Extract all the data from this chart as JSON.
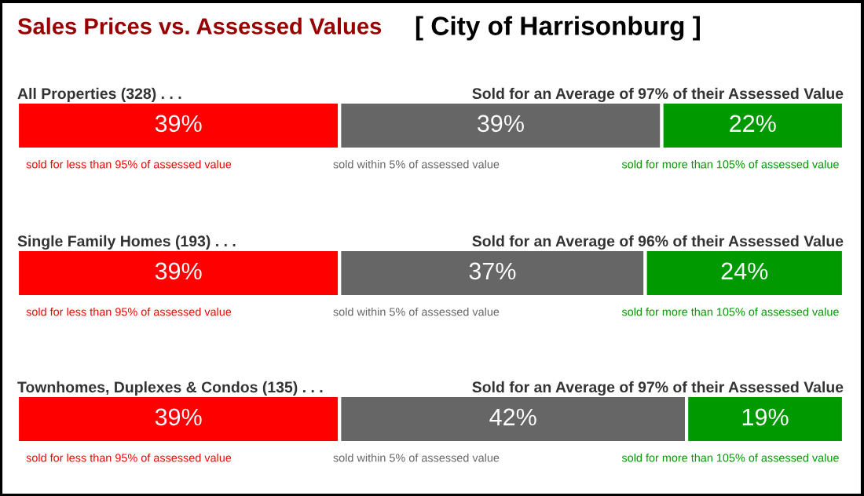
{
  "chart_data": [
    {
      "type": "bar",
      "orientation": "horizontal",
      "stacked": true,
      "title": "All Properties (328) . . .",
      "subtitle": "Sold for an Average of 97% of their Assessed Value",
      "annotations": [
        "Sales Prices vs. Assessed Values",
        "[ City of Harrisonburg ]"
      ],
      "categories": [
        null
      ],
      "xlim": [
        0,
        100
      ],
      "series": [
        {
          "name": "sold for less than 95% of assessed value",
          "color": "#ff0000",
          "values": [
            39
          ],
          "value_labels": [
            "39%"
          ]
        },
        {
          "name": "sold within 5% of assessed value",
          "color": "#666666",
          "values": [
            39
          ],
          "value_labels": [
            "39%"
          ]
        },
        {
          "name": "sold for more than 105% of assessed value",
          "color": "#009900",
          "values": [
            22
          ],
          "value_labels": [
            "22%"
          ]
        }
      ]
    },
    {
      "type": "bar",
      "orientation": "horizontal",
      "stacked": true,
      "title": "Single Family Homes (193) . . .",
      "subtitle": "Sold for an Average of 96% of their Assessed Value",
      "categories": [
        null
      ],
      "xlim": [
        0,
        100
      ],
      "series": [
        {
          "name": "sold for less than 95% of assessed value",
          "color": "#ff0000",
          "values": [
            39
          ],
          "value_labels": [
            "39%"
          ]
        },
        {
          "name": "sold within 5% of assessed value",
          "color": "#666666",
          "values": [
            37
          ],
          "value_labels": [
            "37%"
          ]
        },
        {
          "name": "sold for more than 105% of assessed value",
          "color": "#009900",
          "values": [
            24
          ],
          "value_labels": [
            "24%"
          ]
        }
      ]
    },
    {
      "type": "bar",
      "orientation": "horizontal",
      "stacked": true,
      "title": "Townhomes, Duplexes & Condos (135) . . .",
      "subtitle": "Sold for an Average of 97% of their Assessed Value",
      "categories": [
        null
      ],
      "xlim": [
        0,
        100
      ],
      "series": [
        {
          "name": "sold for less than 95% of assessed value",
          "color": "#ff0000",
          "values": [
            39
          ],
          "value_labels": [
            "39%"
          ]
        },
        {
          "name": "sold within 5% of assessed value",
          "color": "#666666",
          "values": [
            42
          ],
          "value_labels": [
            "42%"
          ]
        },
        {
          "name": "sold for more than 105% of assessed value",
          "color": "#009900",
          "values": [
            19
          ],
          "value_labels": [
            "19%"
          ]
        }
      ]
    }
  ]
}
